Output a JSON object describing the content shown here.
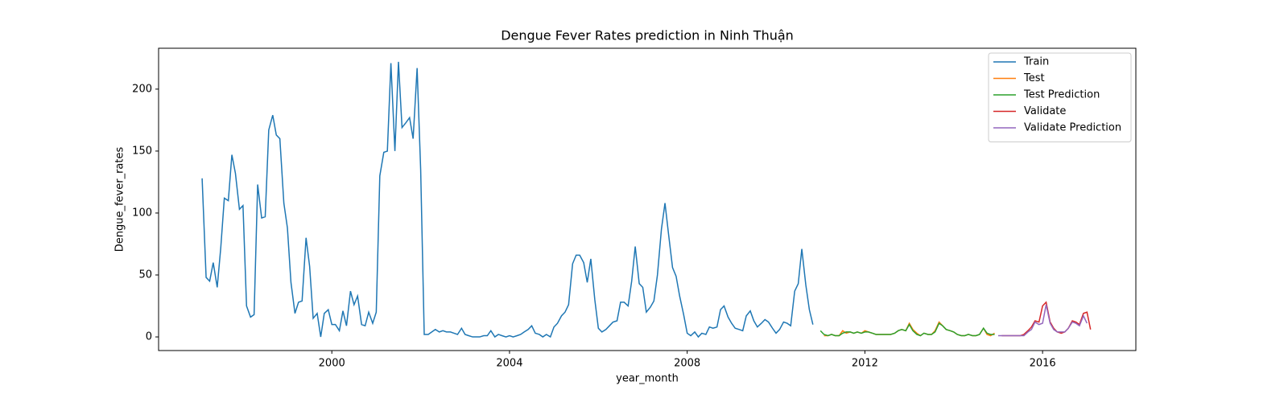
{
  "chart_data": {
    "type": "line",
    "title": "Dengue Fever Rates prediction in Ninh Thuận",
    "x_label": "year_month",
    "y_label": "Dengue_fever_rates",
    "xlim": [
      1996.1,
      2018.1
    ],
    "ylim": [
      -11,
      233
    ],
    "xticks": [
      2000,
      2004,
      2008,
      2012,
      2016
    ],
    "yticks": [
      0,
      50,
      100,
      150,
      200
    ],
    "legend": "upper right",
    "series": [
      {
        "name": "Train",
        "color": "#1f77b4",
        "x": [
          1997.08,
          1997.17,
          1997.25,
          1997.33,
          1997.42,
          1997.5,
          1997.58,
          1997.67,
          1997.75,
          1997.83,
          1997.92,
          1998,
          1998.08,
          1998.17,
          1998.25,
          1998.33,
          1998.42,
          1998.5,
          1998.58,
          1998.67,
          1998.75,
          1998.83,
          1998.92,
          1999,
          1999.08,
          1999.17,
          1999.25,
          1999.33,
          1999.42,
          1999.5,
          1999.58,
          1999.67,
          1999.75,
          1999.83,
          1999.92,
          2000,
          2000.08,
          2000.17,
          2000.25,
          2000.33,
          2000.42,
          2000.5,
          2000.58,
          2000.67,
          2000.75,
          2000.83,
          2000.92,
          2001,
          2001.08,
          2001.17,
          2001.25,
          2001.33,
          2001.42,
          2001.5,
          2001.58,
          2001.67,
          2001.75,
          2001.83,
          2001.92,
          2002,
          2002.08,
          2002.17,
          2002.25,
          2002.33,
          2002.42,
          2002.5,
          2002.58,
          2002.67,
          2002.75,
          2002.83,
          2002.92,
          2003,
          2003.08,
          2003.17,
          2003.25,
          2003.33,
          2003.42,
          2003.5,
          2003.58,
          2003.67,
          2003.75,
          2003.83,
          2003.92,
          2004,
          2004.08,
          2004.17,
          2004.25,
          2004.33,
          2004.42,
          2004.5,
          2004.58,
          2004.67,
          2004.75,
          2004.83,
          2004.92,
          2005,
          2005.08,
          2005.17,
          2005.25,
          2005.33,
          2005.42,
          2005.5,
          2005.58,
          2005.67,
          2005.75,
          2005.83,
          2005.92,
          2006,
          2006.08,
          2006.17,
          2006.25,
          2006.33,
          2006.42,
          2006.5,
          2006.58,
          2006.67,
          2006.75,
          2006.83,
          2006.92,
          2007,
          2007.08,
          2007.17,
          2007.25,
          2007.33,
          2007.42,
          2007.5,
          2007.58,
          2007.67,
          2007.75,
          2007.83,
          2007.92,
          2008,
          2008.08,
          2008.17,
          2008.25,
          2008.33,
          2008.42,
          2008.5,
          2008.58,
          2008.67,
          2008.75,
          2008.83,
          2008.92,
          2009,
          2009.08,
          2009.17,
          2009.25,
          2009.33,
          2009.42,
          2009.5,
          2009.58,
          2009.67,
          2009.75,
          2009.83,
          2009.92,
          2010,
          2010.08,
          2010.17,
          2010.25,
          2010.33,
          2010.42,
          2010.5,
          2010.58,
          2010.67,
          2010.75,
          2010.83
        ],
        "values": [
          128,
          48,
          45,
          60,
          40,
          72,
          112,
          110,
          147,
          132,
          103,
          106,
          25,
          16,
          18,
          123,
          96,
          97,
          167,
          179,
          163,
          160,
          108,
          88,
          44,
          19,
          28,
          29,
          80,
          57,
          15,
          19,
          0,
          19,
          22,
          10,
          10,
          5,
          21,
          9,
          37,
          26,
          33,
          10,
          9,
          20,
          11,
          20,
          130,
          149,
          150,
          221,
          150,
          222,
          169,
          173,
          177,
          160,
          217,
          135,
          2,
          2,
          4,
          6,
          4,
          5,
          4,
          4,
          3,
          2,
          7,
          2,
          1,
          0,
          0,
          0,
          1,
          1,
          5,
          0,
          2,
          1,
          0,
          1,
          0,
          1,
          2,
          4,
          6,
          9,
          3,
          2,
          0,
          2,
          0,
          8,
          11,
          17,
          20,
          26,
          59,
          66,
          66,
          60,
          44,
          63,
          30,
          7,
          4,
          6,
          9,
          12,
          13,
          28,
          28,
          25,
          45,
          73,
          43,
          40,
          20,
          24,
          29,
          50,
          87,
          108,
          83,
          56,
          49,
          33,
          18,
          3,
          1,
          4,
          0,
          3,
          2,
          8,
          7,
          8,
          22,
          25,
          16,
          11,
          7,
          6,
          5,
          17,
          21,
          13,
          8,
          11,
          14,
          12,
          7,
          3,
          6,
          12,
          11,
          9,
          37,
          43,
          71,
          42,
          22,
          10
        ]
      },
      {
        "name": "Test",
        "color": "#ff7f0e",
        "x": [
          2011.08,
          2011.17,
          2011.25,
          2011.33,
          2011.42,
          2011.5,
          2011.58,
          2011.67,
          2011.75,
          2011.83,
          2011.92,
          2012,
          2012.08,
          2012.17,
          2012.25,
          2012.33,
          2012.42,
          2012.5,
          2012.58,
          2012.67,
          2012.75,
          2012.83,
          2012.92,
          2013,
          2013.08,
          2013.17,
          2013.25,
          2013.33,
          2013.42,
          2013.5,
          2013.58,
          2013.67,
          2013.75,
          2013.83,
          2013.92,
          2014,
          2014.08,
          2014.17,
          2014.25,
          2014.33,
          2014.42,
          2014.5,
          2014.58,
          2014.67,
          2014.75,
          2014.83,
          2014.92
        ],
        "values": [
          1,
          1,
          2,
          1,
          1,
          5,
          3,
          4,
          3,
          4,
          3,
          5,
          4,
          3,
          2,
          2,
          2,
          2,
          2,
          3,
          5,
          6,
          5,
          11,
          6,
          3,
          1,
          3,
          2,
          2,
          5,
          12,
          9,
          6,
          5,
          4,
          2,
          1,
          1,
          2,
          1,
          1,
          2,
          7,
          2,
          1,
          3
        ]
      },
      {
        "name": "Test Prediction",
        "color": "#2ca02c",
        "x": [
          2011,
          2011.08,
          2011.17,
          2011.25,
          2011.33,
          2011.42,
          2011.5,
          2011.58,
          2011.67,
          2011.75,
          2011.83,
          2011.92,
          2012,
          2012.08,
          2012.17,
          2012.25,
          2012.33,
          2012.42,
          2012.5,
          2012.58,
          2012.67,
          2012.75,
          2012.83,
          2012.92,
          2013,
          2013.08,
          2013.17,
          2013.25,
          2013.33,
          2013.42,
          2013.5,
          2013.58,
          2013.67,
          2013.75,
          2013.83,
          2013.92,
          2014,
          2014.08,
          2014.17,
          2014.25,
          2014.33,
          2014.42,
          2014.5,
          2014.58,
          2014.67,
          2014.75,
          2014.83,
          2014.92
        ],
        "values": [
          5,
          2,
          1,
          2,
          1,
          1,
          3,
          4,
          4,
          3,
          4,
          3,
          4,
          4,
          3,
          2,
          2,
          2,
          2,
          2,
          3,
          5,
          6,
          5,
          10,
          5,
          2,
          1,
          3,
          2,
          2,
          4,
          11,
          9,
          6,
          5,
          4,
          2,
          1,
          1,
          2,
          1,
          1,
          2,
          7,
          3,
          2,
          2
        ]
      },
      {
        "name": "Validate",
        "color": "#d62728",
        "x": [
          2015.08,
          2015.17,
          2015.25,
          2015.33,
          2015.42,
          2015.5,
          2015.58,
          2015.67,
          2015.75,
          2015.83,
          2015.92,
          2016,
          2016.08,
          2016.17,
          2016.25,
          2016.33,
          2016.42,
          2016.5,
          2016.58,
          2016.67,
          2016.75,
          2016.83,
          2016.92,
          2017,
          2017.08
        ],
        "values": [
          1,
          1,
          1,
          1,
          1,
          1,
          2,
          5,
          8,
          13,
          12,
          25,
          28,
          12,
          7,
          4,
          3,
          4,
          7,
          13,
          12,
          10,
          19,
          20,
          6
        ]
      },
      {
        "name": "Validate Prediction",
        "color": "#9467bd",
        "x": [
          2015,
          2015.08,
          2015.17,
          2015.25,
          2015.33,
          2015.42,
          2015.5,
          2015.58,
          2015.67,
          2015.75,
          2015.83,
          2015.92,
          2016,
          2016.08,
          2016.17,
          2016.25,
          2016.33,
          2016.42,
          2016.5,
          2016.58,
          2016.67,
          2016.75,
          2016.83,
          2016.92,
          2017
        ],
        "values": [
          1,
          1,
          1,
          1,
          1,
          1,
          1,
          1,
          4,
          6,
          12,
          10,
          11,
          26,
          11,
          6,
          4,
          4,
          4,
          7,
          12,
          11,
          9,
          17,
          11
        ]
      }
    ]
  }
}
